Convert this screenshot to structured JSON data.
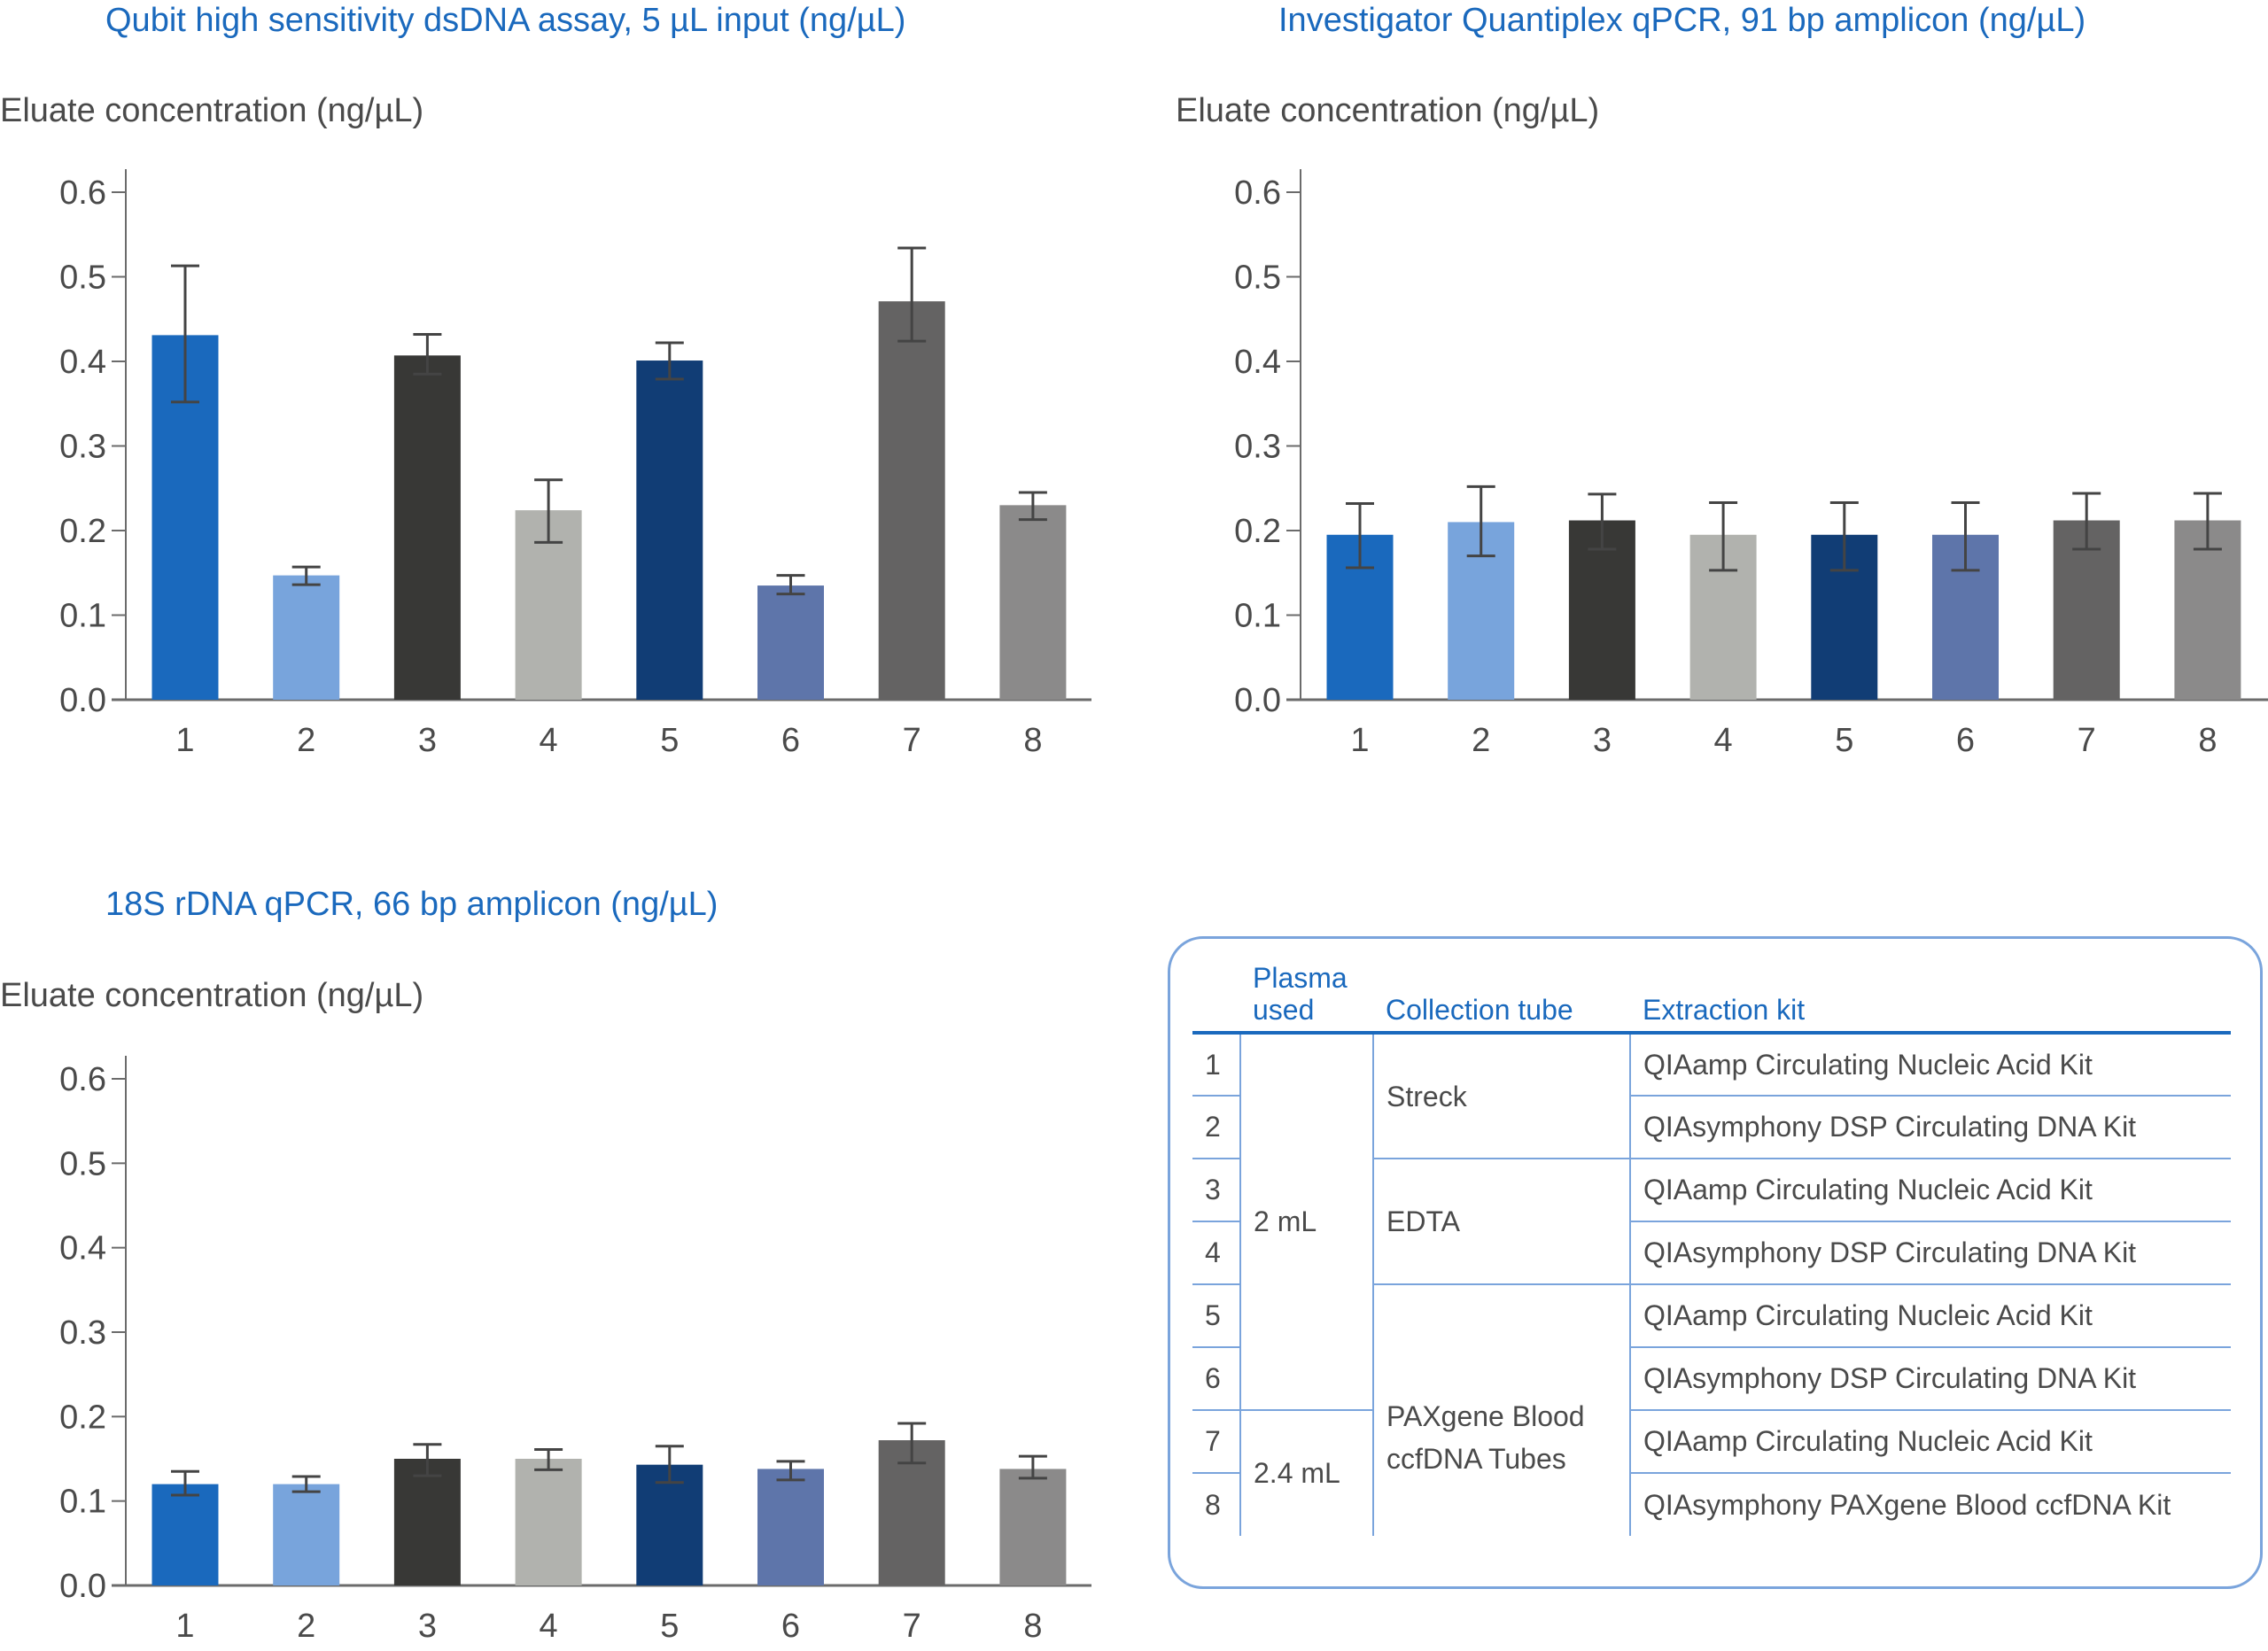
{
  "colors": {
    "title": "#1a69bd",
    "text": "#4a4a4a",
    "axis": "#6b6b6b",
    "error_bar": "#444444",
    "table_line": "#7aa4dc",
    "bars": [
      "#1a69bd",
      "#78a4dc",
      "#383836",
      "#b1b2ae",
      "#113d75",
      "#5e75aa",
      "#646363",
      "#8b8a8a"
    ]
  },
  "chart_data": [
    {
      "type": "bar",
      "title": "Qubit high sensitivity dsDNA assay, 5 µL input (ng/µL)",
      "xlabel": "",
      "ylabel": "Eluate concentration (ng/µL)",
      "ylim": [
        0.0,
        0.6
      ],
      "yticks": [
        "0.0",
        "0.1",
        "0.2",
        "0.3",
        "0.4",
        "0.5",
        "0.6"
      ],
      "grid": false,
      "categories": [
        "1",
        "2",
        "3",
        "4",
        "5",
        "6",
        "7",
        "8"
      ],
      "values": [
        0.431,
        0.147,
        0.407,
        0.224,
        0.401,
        0.135,
        0.471,
        0.23
      ],
      "error_low": [
        0.352,
        0.136,
        0.385,
        0.186,
        0.379,
        0.125,
        0.424,
        0.213
      ],
      "error_high": [
        0.513,
        0.157,
        0.432,
        0.26,
        0.422,
        0.147,
        0.534,
        0.245
      ]
    },
    {
      "type": "bar",
      "title": "Investigator Quantiplex qPCR, 91 bp amplicon (ng/µL)",
      "xlabel": "",
      "ylabel": "Eluate concentration (ng/µL)",
      "ylim": [
        0.0,
        0.6
      ],
      "yticks": [
        "0.0",
        "0.1",
        "0.2",
        "0.3",
        "0.4",
        "0.5",
        "0.6"
      ],
      "grid": false,
      "categories": [
        "1",
        "2",
        "3",
        "4",
        "5",
        "6",
        "7",
        "8"
      ],
      "values": [
        0.195,
        0.21,
        0.212,
        0.195,
        0.195,
        0.195,
        0.212,
        0.212
      ],
      "error_low": [
        0.156,
        0.17,
        0.178,
        0.153,
        0.153,
        0.153,
        0.178,
        0.178
      ],
      "error_high": [
        0.232,
        0.252,
        0.243,
        0.233,
        0.233,
        0.233,
        0.244,
        0.244
      ]
    },
    {
      "type": "bar",
      "title": "18S rDNA qPCR, 66 bp amplicon (ng/µL)",
      "xlabel": "",
      "ylabel": "Eluate concentration (ng/µL)",
      "ylim": [
        0.0,
        0.6
      ],
      "yticks": [
        "0.0",
        "0.1",
        "0.2",
        "0.3",
        "0.4",
        "0.5",
        "0.6"
      ],
      "grid": false,
      "categories": [
        "1",
        "2",
        "3",
        "4",
        "5",
        "6",
        "7",
        "8"
      ],
      "values": [
        0.12,
        0.12,
        0.15,
        0.15,
        0.143,
        0.138,
        0.172,
        0.138
      ],
      "error_low": [
        0.107,
        0.111,
        0.13,
        0.137,
        0.122,
        0.125,
        0.145,
        0.127
      ],
      "error_high": [
        0.135,
        0.129,
        0.167,
        0.161,
        0.165,
        0.147,
        0.192,
        0.153
      ]
    }
  ],
  "legend_table": {
    "headers": {
      "plasma": "Plasma used",
      "tube": "Collection tube",
      "kit": "Extraction kit"
    },
    "plasma_groups": [
      {
        "label": "2 mL",
        "rows": 6
      },
      {
        "label": "2.4 mL",
        "rows": 2
      }
    ],
    "tube_groups": [
      {
        "label": "Streck",
        "rows": 2
      },
      {
        "label": "EDTA",
        "rows": 2
      },
      {
        "label": "PAXgene Blood ccfDNA Tubes",
        "rows": 4
      }
    ],
    "rows": [
      {
        "num": "1",
        "kit": "QIAamp Circulating Nucleic Acid Kit"
      },
      {
        "num": "2",
        "kit": "QIAsymphony DSP Circulating DNA Kit"
      },
      {
        "num": "3",
        "kit": "QIAamp Circulating Nucleic Acid Kit"
      },
      {
        "num": "4",
        "kit": "QIAsymphony DSP Circulating DNA Kit"
      },
      {
        "num": "5",
        "kit": "QIAamp Circulating Nucleic Acid Kit"
      },
      {
        "num": "6",
        "kit": "QIAsymphony DSP Circulating DNA Kit"
      },
      {
        "num": "7",
        "kit": "QIAamp Circulating Nucleic Acid Kit"
      },
      {
        "num": "8",
        "kit": "QIAsymphony PAXgene Blood ccfDNA Kit"
      }
    ]
  }
}
